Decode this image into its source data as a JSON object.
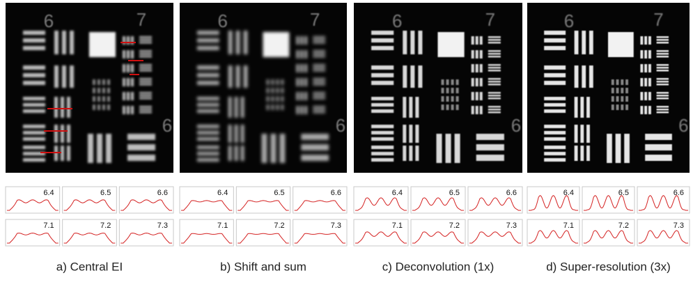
{
  "panels": [
    {
      "caption": "a)  Central EI",
      "image_labels": [
        "6",
        "7",
        "6"
      ],
      "plots": [
        "6.4",
        "6.5",
        "6.6",
        "7.1",
        "7.2",
        "7.3"
      ]
    },
    {
      "caption": "b)  Shift and sum",
      "image_labels": [
        "6",
        "7",
        "6"
      ],
      "plots": [
        "6.4",
        "6.5",
        "6.6",
        "7.1",
        "7.2",
        "7.3"
      ]
    },
    {
      "caption": "c)  Deconvolution (1x)",
      "image_labels": [
        "6",
        "7",
        "6"
      ],
      "plots": [
        "6.4",
        "6.5",
        "6.6",
        "7.1",
        "7.2",
        "7.3"
      ]
    },
    {
      "caption": "d)  Super-resolution (3x)",
      "image_labels": [
        "6",
        "7",
        "6"
      ],
      "plots": [
        "6.4",
        "6.5",
        "6.6",
        "7.1",
        "7.2",
        "7.3"
      ]
    }
  ]
}
